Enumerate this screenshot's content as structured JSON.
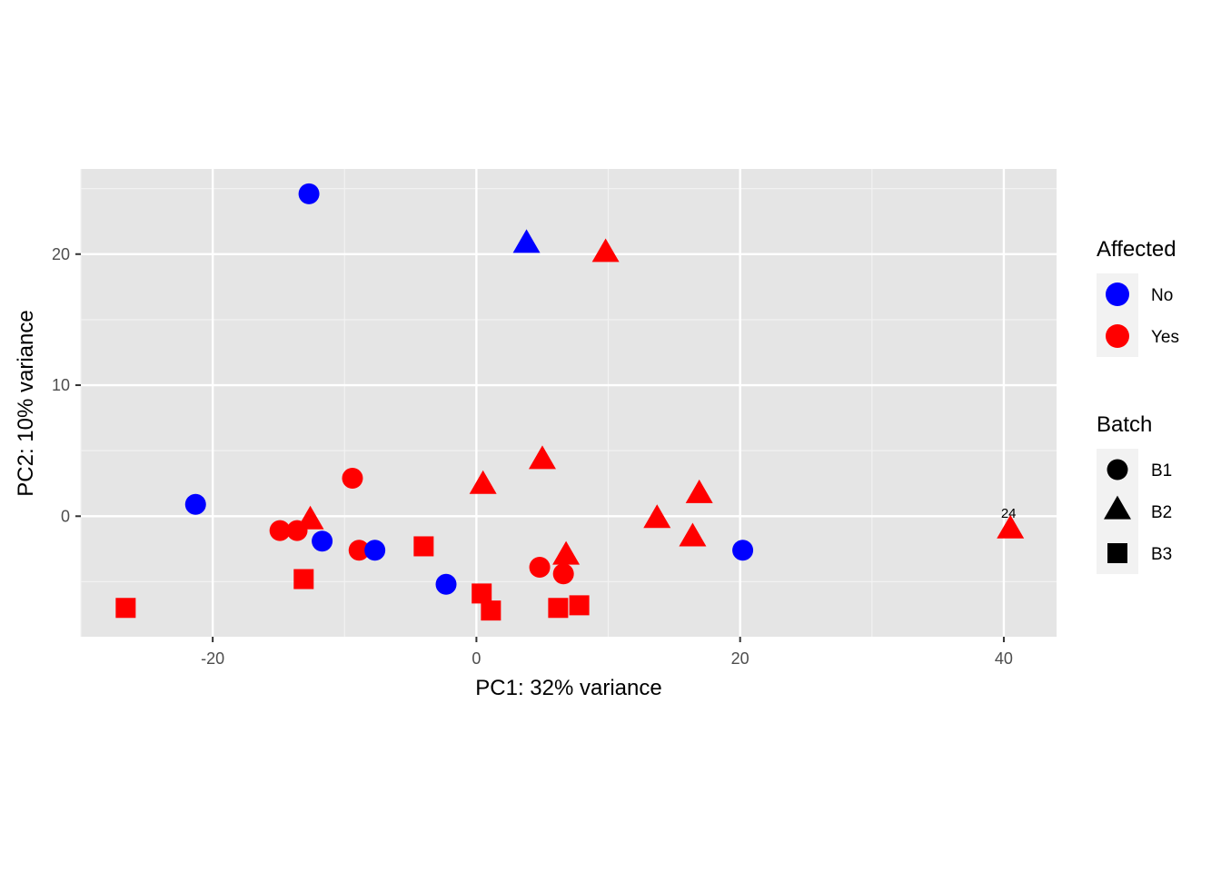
{
  "chart_data": {
    "type": "scatter",
    "xlabel": "PC1: 32% variance",
    "ylabel": "PC2: 10% variance",
    "xlim": [
      -30,
      44
    ],
    "ylim": [
      -9.2,
      26.5
    ],
    "x_ticks": [
      -20,
      0,
      20,
      40
    ],
    "x_tick_labels": [
      "-20",
      "0",
      "20",
      "40"
    ],
    "y_ticks": [
      0,
      10,
      20
    ],
    "y_tick_labels": [
      "0",
      "10",
      "20"
    ],
    "grid": true,
    "legend_position": "right",
    "legends": [
      {
        "title": "Affected",
        "kind": "color",
        "items": [
          {
            "label": "No",
            "color": "#0000ff"
          },
          {
            "label": "Yes",
            "color": "#ff0000"
          }
        ]
      },
      {
        "title": "Batch",
        "kind": "shape",
        "items": [
          {
            "label": "B1",
            "shape": "circle"
          },
          {
            "label": "B2",
            "shape": "triangle"
          },
          {
            "label": "B3",
            "shape": "square"
          }
        ]
      }
    ],
    "points": [
      {
        "x": -12.7,
        "y": 24.6,
        "affected": "No",
        "batch": "B1"
      },
      {
        "x": 3.8,
        "y": 20.7,
        "affected": "No",
        "batch": "B2"
      },
      {
        "x": 9.8,
        "y": 20.0,
        "affected": "Yes",
        "batch": "B2"
      },
      {
        "x": -21.3,
        "y": 0.9,
        "affected": "No",
        "batch": "B1"
      },
      {
        "x": -9.4,
        "y": 2.9,
        "affected": "Yes",
        "batch": "B1"
      },
      {
        "x": -14.9,
        "y": -1.1,
        "affected": "Yes",
        "batch": "B1"
      },
      {
        "x": -13.6,
        "y": -1.1,
        "affected": "Yes",
        "batch": "B1"
      },
      {
        "x": -12.6,
        "y": -0.4,
        "affected": "Yes",
        "batch": "B2"
      },
      {
        "x": -11.7,
        "y": -1.9,
        "affected": "No",
        "batch": "B1"
      },
      {
        "x": -8.9,
        "y": -2.6,
        "affected": "Yes",
        "batch": "B1"
      },
      {
        "x": -7.7,
        "y": -2.6,
        "affected": "No",
        "batch": "B1"
      },
      {
        "x": -4.0,
        "y": -2.3,
        "affected": "Yes",
        "batch": "B3"
      },
      {
        "x": -13.1,
        "y": -4.8,
        "affected": "Yes",
        "batch": "B3"
      },
      {
        "x": -26.6,
        "y": -7.0,
        "affected": "Yes",
        "batch": "B3"
      },
      {
        "x": -2.3,
        "y": -5.2,
        "affected": "No",
        "batch": "B1"
      },
      {
        "x": 0.5,
        "y": 2.3,
        "affected": "Yes",
        "batch": "B2"
      },
      {
        "x": 5.0,
        "y": 4.2,
        "affected": "Yes",
        "batch": "B2"
      },
      {
        "x": 0.4,
        "y": -5.9,
        "affected": "Yes",
        "batch": "B3"
      },
      {
        "x": 1.1,
        "y": -7.2,
        "affected": "Yes",
        "batch": "B3"
      },
      {
        "x": 4.8,
        "y": -3.9,
        "affected": "Yes",
        "batch": "B1"
      },
      {
        "x": 6.6,
        "y": -4.4,
        "affected": "Yes",
        "batch": "B1"
      },
      {
        "x": 6.8,
        "y": -3.1,
        "affected": "Yes",
        "batch": "B2"
      },
      {
        "x": 6.2,
        "y": -7.0,
        "affected": "Yes",
        "batch": "B3"
      },
      {
        "x": 7.8,
        "y": -6.8,
        "affected": "Yes",
        "batch": "B3"
      },
      {
        "x": 13.7,
        "y": -0.3,
        "affected": "Yes",
        "batch": "B2"
      },
      {
        "x": 16.9,
        "y": 1.6,
        "affected": "Yes",
        "batch": "B2"
      },
      {
        "x": 16.4,
        "y": -1.7,
        "affected": "Yes",
        "batch": "B2"
      },
      {
        "x": 20.2,
        "y": -2.6,
        "affected": "No",
        "batch": "B1"
      },
      {
        "x": 40.5,
        "y": -1.1,
        "affected": "Yes",
        "batch": "B2",
        "label": "24"
      }
    ]
  }
}
